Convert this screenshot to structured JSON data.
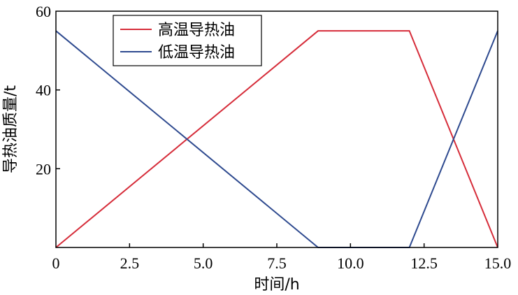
{
  "chart_data": {
    "type": "line",
    "xlabel": "时间/h",
    "ylabel": "导热油质量/t",
    "xlim": [
      0,
      15
    ],
    "ylim": [
      0,
      60
    ],
    "x_ticks": [
      "0",
      "2.5",
      "5.0",
      "7.5",
      "10.0",
      "12.5",
      "15.0"
    ],
    "x_tick_values": [
      0,
      2.5,
      5,
      7.5,
      10,
      12.5,
      15
    ],
    "y_ticks": [
      "20",
      "40",
      "60"
    ],
    "y_tick_values": [
      20,
      40,
      60
    ],
    "grid": false,
    "legend_position": "top-center",
    "series": [
      {
        "name": "高温导热油",
        "color": "#d62d3a",
        "x": [
          0,
          8.9,
          12,
          15
        ],
        "y": [
          0,
          55,
          55,
          0
        ]
      },
      {
        "name": "低温导热油",
        "color": "#2e4a8f",
        "x": [
          0,
          8.9,
          12,
          15
        ],
        "y": [
          55,
          0,
          0,
          55
        ]
      }
    ]
  }
}
